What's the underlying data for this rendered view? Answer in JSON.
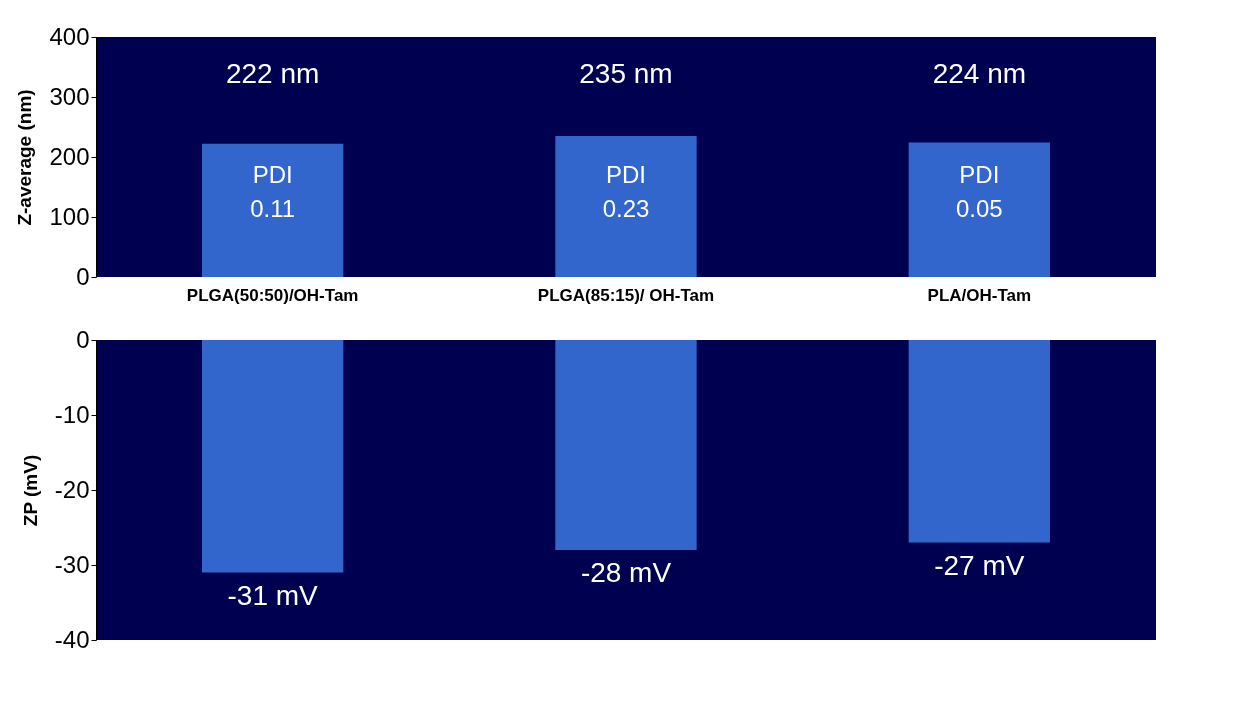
{
  "chart_data": [
    {
      "type": "bar",
      "ylabel": "Z-average (nm)",
      "categories": [
        "PLGA(50:50)/OH-Tam",
        "PLGA(85:15)/ OH-Tam",
        "PLA/OH-Tam"
      ],
      "values": [
        222,
        235,
        224
      ],
      "value_labels": [
        "222 nm",
        "235 nm",
        "224 nm"
      ],
      "color": "#3366cc",
      "ylim": [
        0,
        400
      ],
      "yticks": [
        0,
        100,
        200,
        300,
        400
      ],
      "grid": false,
      "annotations": [
        "PDI\n0.11",
        "PDI\n0.23",
        "PDI\n0.05"
      ]
    },
    {
      "type": "bar",
      "ylabel": "ZP (mV)",
      "categories": [
        null,
        null,
        null
      ],
      "values": [
        -31,
        -28,
        -27
      ],
      "value_labels": [
        "-31 mV",
        "-28 mV",
        "-27 mV"
      ],
      "color": "#3366cc",
      "ylim": [
        -40,
        0
      ],
      "yticks": [
        -40,
        -30,
        -20,
        -10,
        0
      ],
      "grid": false
    }
  ]
}
